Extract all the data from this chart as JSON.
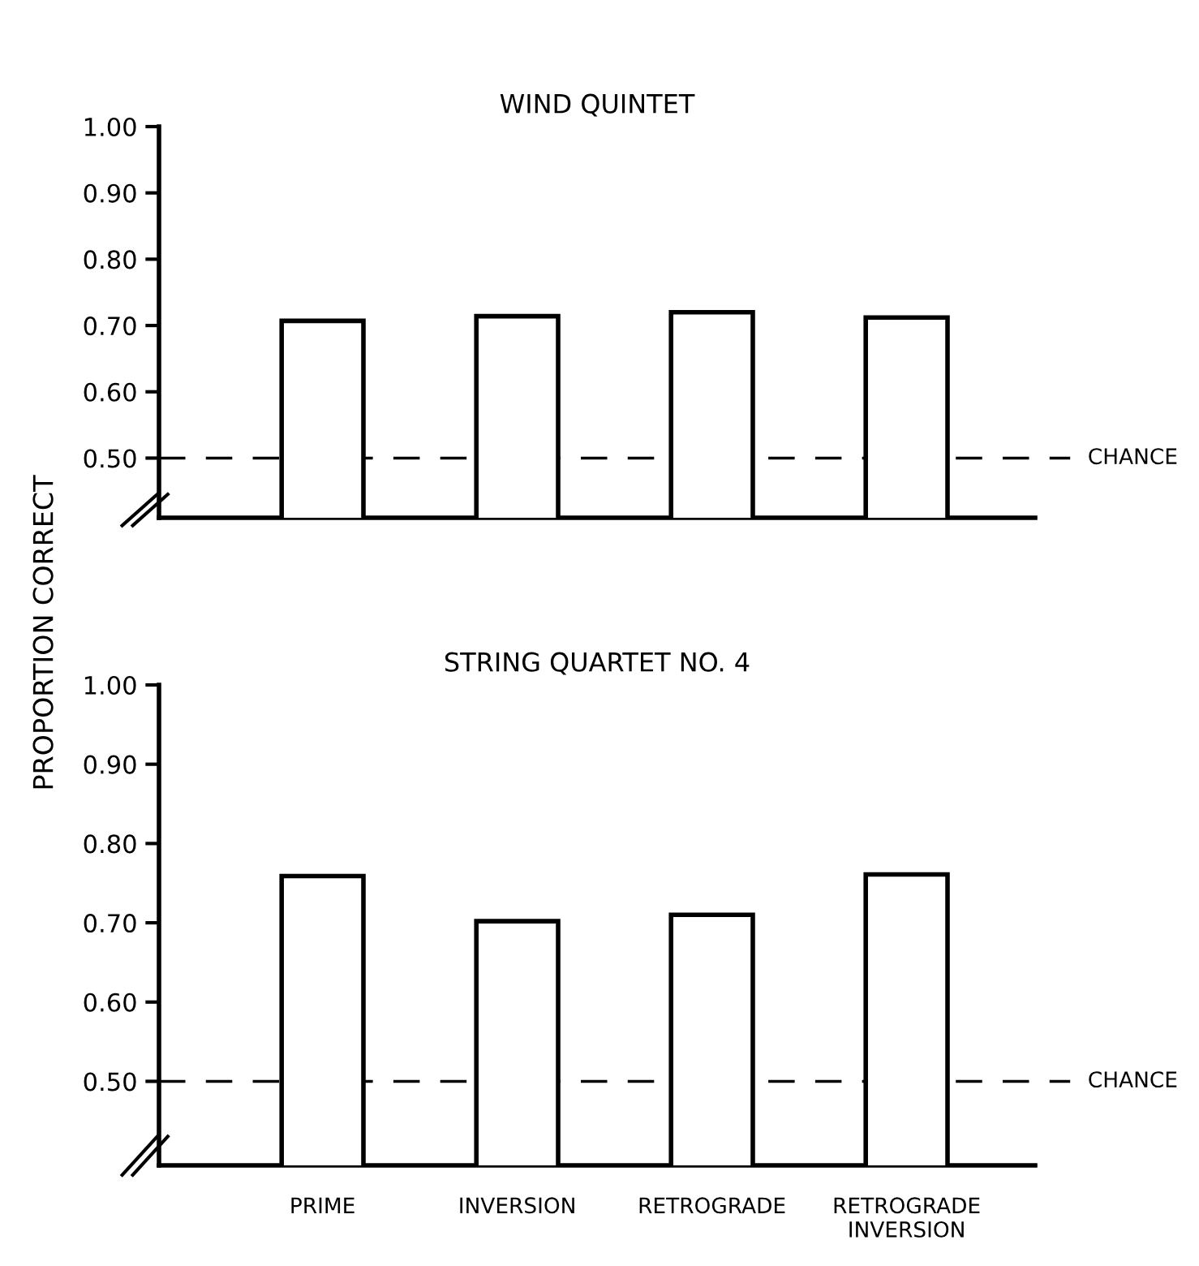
{
  "chart_data": [
    {
      "type": "bar",
      "title": "WIND QUINTET",
      "ylabel": "PROPORTION CORRECT",
      "categories": [
        null,
        null,
        null,
        null
      ],
      "values": [
        0.707,
        0.714,
        0.72,
        0.712
      ],
      "color": "#ffffff",
      "ylim": [
        0.41,
        1.0
      ],
      "yticks": [
        {
          "value": 0.5,
          "label": "0.50"
        },
        {
          "value": 0.6,
          "label": "0.60"
        },
        {
          "value": 0.7,
          "label": "0.70"
        },
        {
          "value": 0.8,
          "label": "0.80"
        },
        {
          "value": 0.9,
          "label": "0.90"
        },
        {
          "value": 1.0,
          "label": "1.00"
        }
      ],
      "ref_lines": [
        {
          "axis": "y",
          "value": 0.5,
          "label": "CHANCE",
          "color": "#000000",
          "line_style": "dashed"
        }
      ],
      "tick_labels": "y",
      "grid": false,
      "legend": false
    },
    {
      "type": "bar",
      "title": "STRING QUARTET NO. 4",
      "categories": [
        "PRIME",
        "INVERSION",
        "RETROGRADE",
        "RETROGRADE\nINVERSION"
      ],
      "values": [
        0.759,
        0.702,
        0.71,
        0.761
      ],
      "color": "#ffffff",
      "ylim": [
        0.394,
        1.0
      ],
      "yticks": [
        {
          "value": 0.5,
          "label": "0.50"
        },
        {
          "value": 0.6,
          "label": "0.60"
        },
        {
          "value": 0.7,
          "label": "0.70"
        },
        {
          "value": 0.8,
          "label": "0.80"
        },
        {
          "value": 0.9,
          "label": "0.90"
        },
        {
          "value": 1.0,
          "label": "1.00"
        }
      ],
      "ref_lines": [
        {
          "axis": "y",
          "value": 0.5,
          "label": "CHANCE",
          "color": "#000000",
          "line_style": "dashed"
        }
      ],
      "grid": false,
      "legend": false
    }
  ]
}
